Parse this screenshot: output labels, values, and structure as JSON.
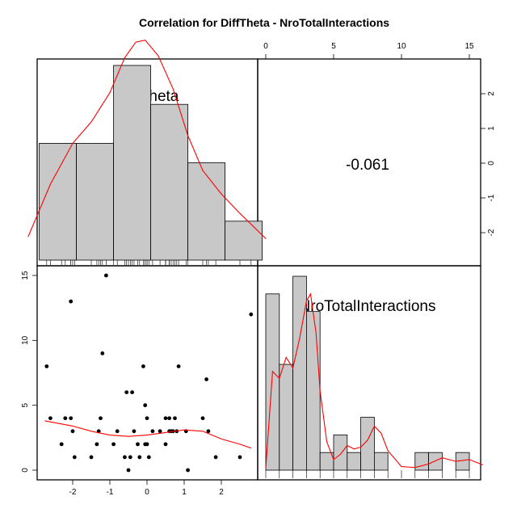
{
  "title": "Correlation  for DiffTheta - NroTotalInteractions",
  "colors": {
    "bar_fill": "#c8c8c8",
    "smooth": "#ff0000",
    "frame": "#000000"
  },
  "chart_data": {
    "type": "scatter-matrix",
    "variables": [
      "DiffTheta",
      "NroTotalInteractions"
    ],
    "correlation_label": "-0.061",
    "diff_theta_hist": {
      "bin_edges": [
        -2.9,
        -1.9,
        -0.9,
        0.1,
        1.1,
        2.1,
        3.1
      ],
      "counts": [
        6,
        6,
        10,
        8,
        5,
        2
      ],
      "axis_ticks": [
        "-2",
        "-1",
        "0",
        "1",
        "2"
      ],
      "density_curve_x": [
        -3.2,
        -2.6,
        -2.0,
        -1.5,
        -1.0,
        -0.6,
        -0.3,
        -0.05,
        0.3,
        0.7,
        1.1,
        1.5,
        2.0,
        2.5,
        3.2
      ],
      "density_curve_y": [
        1.2,
        3.9,
        6.0,
        7.1,
        8.6,
        10.4,
        11.2,
        11.3,
        10.5,
        8.8,
        6.4,
        4.6,
        3.4,
        2.4,
        1.1
      ]
    },
    "nro_hist": {
      "bin_edges": [
        0,
        1,
        2,
        3,
        4,
        5,
        6,
        7,
        8,
        9,
        10,
        11,
        12,
        13,
        14,
        15,
        16
      ],
      "counts": [
        10,
        6,
        11,
        9,
        1,
        2,
        1,
        3,
        1,
        0,
        0,
        1,
        1,
        0,
        1,
        0
      ],
      "axis_ticks": [
        "0",
        "5",
        "10",
        "15"
      ],
      "density_curve_x": [
        0.0,
        0.5,
        1.0,
        1.5,
        2.0,
        2.5,
        3.0,
        3.3,
        3.7,
        4.0,
        4.5,
        5.0,
        5.5,
        6.0,
        6.5,
        7.0,
        7.5,
        8.0,
        8.5,
        9.0,
        10.0,
        11.0,
        12.0,
        13.0,
        14.0,
        15.0,
        16.0
      ],
      "density_curve_y": [
        0.1,
        5.6,
        5.2,
        6.4,
        5.8,
        7.5,
        9.6,
        10.0,
        7.8,
        4.5,
        1.6,
        0.6,
        0.9,
        1.4,
        1.2,
        1.3,
        1.7,
        2.5,
        2.1,
        1.1,
        0.2,
        0.15,
        0.35,
        0.7,
        0.5,
        0.6,
        0.3
      ]
    },
    "upper_right_ticks": {
      "top": [
        "0",
        "5",
        "10",
        "15"
      ],
      "right": [
        "2",
        "1",
        "0",
        "-1",
        "-2"
      ]
    },
    "scatter": {
      "x_label_ticks": [
        "-2",
        "-1",
        "0",
        "1",
        "2"
      ],
      "y_label_ticks": [
        "0",
        "5",
        "10",
        "15"
      ],
      "points": [
        [
          -2.7,
          8
        ],
        [
          -2.6,
          4
        ],
        [
          -2.3,
          2
        ],
        [
          -2.2,
          4
        ],
        [
          -2.05,
          4
        ],
        [
          -2.0,
          3
        ],
        [
          -2.05,
          13
        ],
        [
          -1.95,
          1
        ],
        [
          -1.5,
          1
        ],
        [
          -1.35,
          2
        ],
        [
          -1.3,
          3
        ],
        [
          -1.25,
          4
        ],
        [
          -1.2,
          9
        ],
        [
          -1.1,
          15
        ],
        [
          -0.9,
          2
        ],
        [
          -0.8,
          3
        ],
        [
          -0.6,
          1
        ],
        [
          -0.55,
          6
        ],
        [
          -0.5,
          0
        ],
        [
          -0.45,
          1
        ],
        [
          -0.4,
          6
        ],
        [
          -0.35,
          3
        ],
        [
          -0.25,
          2
        ],
        [
          -0.2,
          1
        ],
        [
          -0.1,
          8
        ],
        [
          -0.05,
          5
        ],
        [
          -0.05,
          2
        ],
        [
          0.0,
          4
        ],
        [
          0.0,
          2
        ],
        [
          0.05,
          1
        ],
        [
          0.15,
          3
        ],
        [
          0.35,
          3
        ],
        [
          0.5,
          4
        ],
        [
          0.5,
          2
        ],
        [
          0.6,
          3
        ],
        [
          0.6,
          4
        ],
        [
          0.65,
          3
        ],
        [
          0.7,
          3
        ],
        [
          0.75,
          4
        ],
        [
          0.8,
          3
        ],
        [
          0.85,
          8
        ],
        [
          1.05,
          3
        ],
        [
          1.1,
          0
        ],
        [
          1.5,
          4
        ],
        [
          1.6,
          7
        ],
        [
          1.65,
          3
        ],
        [
          1.85,
          1
        ],
        [
          2.5,
          1
        ],
        [
          2.8,
          12
        ]
      ],
      "smooth_curve": [
        [
          -2.75,
          3.8
        ],
        [
          -2.0,
          3.4
        ],
        [
          -1.5,
          3.0
        ],
        [
          -1.0,
          2.7
        ],
        [
          -0.5,
          2.6
        ],
        [
          0.0,
          2.7
        ],
        [
          0.5,
          2.9
        ],
        [
          1.0,
          3.1
        ],
        [
          1.5,
          3.0
        ],
        [
          2.0,
          2.4
        ],
        [
          2.5,
          2.0
        ],
        [
          2.8,
          1.7
        ]
      ]
    }
  }
}
